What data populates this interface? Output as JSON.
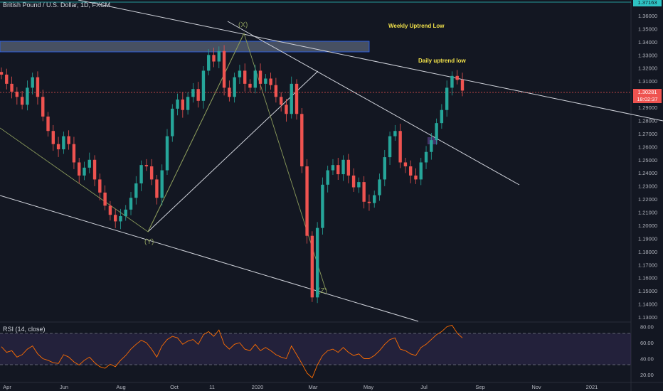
{
  "header": {
    "title": "British Pound / U.S. Dollar, 1D, FXCM",
    "rsi_title": "RSI (14, close)"
  },
  "annotations": {
    "weekly": "Weekly Uptrend Low",
    "daily": "Daily uptrend low"
  },
  "price_tags": {
    "last": "1.30281",
    "countdown": "18:02:37",
    "top": "1.37163"
  },
  "colors": {
    "background": "#131722",
    "up": "#26a69a",
    "down": "#ef5350",
    "trendline": "#d1d4dc",
    "pattern_line": "#8a9a5b",
    "annotation": "#f0e04a",
    "rsi": "#ff6d00",
    "last_price": "#ef5350",
    "top_line": "#2ec4c4",
    "zone_fill": "#5a6478",
    "zone_border": "#2962ff"
  },
  "chart_data": [
    {
      "type": "candlestick",
      "title": "British Pound / U.S. Dollar, 1D, FXCM",
      "x_ticks": [
        "Apr",
        "Jun",
        "Aug",
        "Oct",
        "11",
        "2020",
        "Mar",
        "May",
        "Jul",
        "Sep",
        "Nov",
        "2021"
      ],
      "y_ticks": [
        "1.36000",
        "1.35000",
        "1.34000",
        "1.33000",
        "1.32000",
        "1.31000",
        "1.30000",
        "1.29000",
        "1.28000",
        "1.27000",
        "1.26000",
        "1.25000",
        "1.24000",
        "1.23000",
        "1.22000",
        "1.21000",
        "1.20000",
        "1.19000",
        "1.18000",
        "1.17000",
        "1.16000",
        "1.15000",
        "1.14000",
        "1.13000"
      ],
      "ylim": [
        1.127,
        1.372
      ],
      "last_price": 1.30281,
      "series_close": [
        1.315,
        1.308,
        1.302,
        1.298,
        1.292,
        1.305,
        1.313,
        1.298,
        1.283,
        1.272,
        1.262,
        1.258,
        1.268,
        1.262,
        1.248,
        1.238,
        1.244,
        1.25,
        1.235,
        1.225,
        1.215,
        1.208,
        1.203,
        1.207,
        1.212,
        1.221,
        1.232,
        1.246,
        1.245,
        1.235,
        1.221,
        1.242,
        1.268,
        1.289,
        1.296,
        1.288,
        1.298,
        1.304,
        1.295,
        1.318,
        1.33,
        1.325,
        1.333,
        1.305,
        1.298,
        1.313,
        1.318,
        1.308,
        1.305,
        1.318,
        1.308,
        1.312,
        1.307,
        1.298,
        1.292,
        1.285,
        1.308,
        1.285,
        1.245,
        1.192,
        1.145,
        1.198,
        1.231,
        1.242,
        1.246,
        1.239,
        1.25,
        1.238,
        1.229,
        1.233,
        1.218,
        1.217,
        1.223,
        1.235,
        1.252,
        1.268,
        1.272,
        1.248,
        1.245,
        1.238,
        1.235,
        1.248,
        1.256,
        1.265,
        1.278,
        1.288,
        1.305,
        1.314,
        1.311,
        1.3028
      ]
    },
    {
      "type": "line",
      "title": "RSI (14, close)",
      "y_ticks": [
        "80.00",
        "60.00",
        "40.00",
        "20.00"
      ],
      "ylim": [
        12,
        85
      ],
      "bands": [
        70,
        30
      ],
      "values": [
        55,
        48,
        50,
        42,
        45,
        52,
        56,
        46,
        40,
        38,
        35,
        34,
        45,
        42,
        36,
        32,
        38,
        42,
        35,
        30,
        28,
        33,
        30,
        38,
        44,
        52,
        58,
        63,
        60,
        52,
        42,
        56,
        64,
        68,
        66,
        58,
        62,
        64,
        58,
        70,
        74,
        68,
        76,
        58,
        52,
        58,
        60,
        52,
        50,
        58,
        50,
        54,
        50,
        45,
        42,
        40,
        56,
        45,
        34,
        22,
        16,
        32,
        44,
        50,
        52,
        48,
        54,
        48,
        44,
        46,
        40,
        40,
        44,
        50,
        58,
        64,
        66,
        52,
        50,
        46,
        44,
        54,
        58,
        64,
        70,
        74,
        80,
        82,
        72,
        66
      ]
    }
  ]
}
